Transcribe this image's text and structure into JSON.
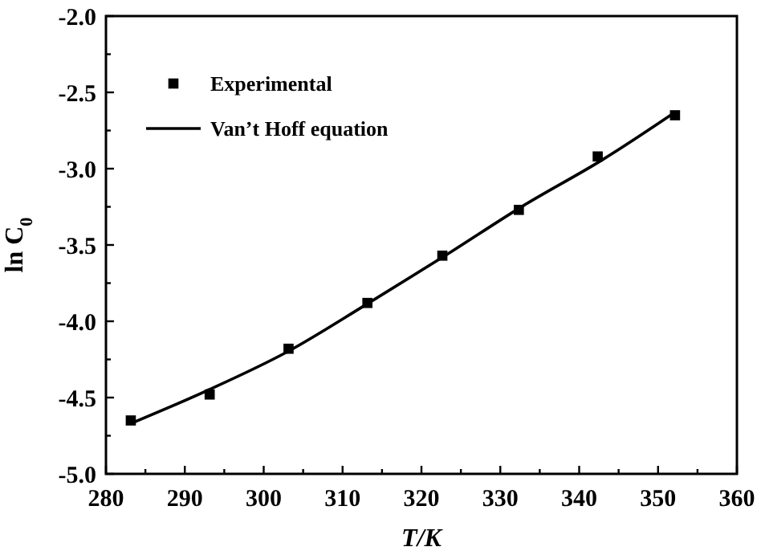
{
  "chart_data": {
    "type": "scatter",
    "xlabel": "T/K",
    "ylabel": "ln C$_{0}$",
    "xlim": [
      280,
      360
    ],
    "ylim": [
      -5.0,
      -2.0
    ],
    "xticks": [
      280,
      {
        "value": 285,
        "label": null
      },
      290,
      {
        "value": 295,
        "label": null
      },
      300,
      {
        "value": 305,
        "label": null
      },
      310,
      {
        "value": 315,
        "label": null
      },
      320,
      {
        "value": 325,
        "label": null
      },
      330,
      {
        "value": 335,
        "label": null
      },
      340,
      {
        "value": 345,
        "label": null
      },
      350,
      {
        "value": 355,
        "label": null
      },
      360
    ],
    "yticks": [
      {
        "value": -5.0,
        "label": "-5.0"
      },
      {
        "value": -4.75,
        "label": null
      },
      {
        "value": -4.5,
        "label": "-4.5"
      },
      {
        "value": -4.25,
        "label": null
      },
      {
        "value": -4.0,
        "label": "-4.0"
      },
      {
        "value": -3.75,
        "label": null
      },
      {
        "value": -3.5,
        "label": "-3.5"
      },
      {
        "value": -3.25,
        "label": null
      },
      {
        "value": -3.0,
        "label": "-3.0"
      },
      {
        "value": -2.75,
        "label": null
      },
      {
        "value": -2.5,
        "label": "-2.5"
      },
      {
        "value": -2.25,
        "label": null
      },
      {
        "value": -2.0,
        "label": "-2.0"
      }
    ],
    "legend": "top left",
    "grid": false,
    "series": [
      {
        "name": "Experimental",
        "marker": "square",
        "color": "#000000",
        "x": [
          283.15,
          293.15,
          303.15,
          313.15,
          322.65,
          332.35,
          342.35,
          352.15
        ],
        "values": [
          -4.65,
          -4.48,
          -4.18,
          -3.88,
          -3.57,
          -3.27,
          -2.92,
          -2.65
        ]
      },
      {
        "name": "Van’t Hoff equation",
        "type": "line",
        "marker": "none",
        "line_style": "solid",
        "color": "#000000",
        "x": [
          283.15,
          293,
          303,
          313,
          323,
          333,
          343,
          352.15
        ],
        "values": [
          -4.67,
          -4.45,
          -4.2,
          -3.89,
          -3.57,
          -3.24,
          -2.94,
          -2.63
        ]
      }
    ]
  }
}
